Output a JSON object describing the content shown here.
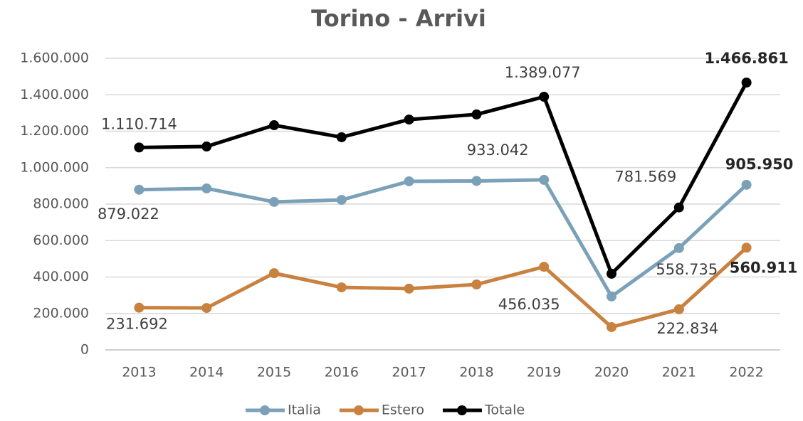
{
  "chart_data": {
    "type": "line",
    "title": "Torino - Arrivi",
    "categories": [
      "2013",
      "2014",
      "2015",
      "2016",
      "2017",
      "2018",
      "2019",
      "2020",
      "2021",
      "2022"
    ],
    "series": [
      {
        "name": "Italia",
        "color": "#7ba1b8",
        "values": [
          879022,
          886000,
          812000,
          823000,
          925000,
          927000,
          933042,
          293000,
          558735,
          905950
        ],
        "value_labels": [
          "879.022",
          null,
          null,
          null,
          null,
          null,
          "933.042",
          null,
          "558.735",
          "905.950"
        ]
      },
      {
        "name": "Estero",
        "color": "#c9813f",
        "values": [
          231692,
          230000,
          421000,
          343000,
          336000,
          359000,
          456035,
          125000,
          222834,
          560911
        ],
        "value_labels": [
          "231.692",
          null,
          null,
          null,
          null,
          null,
          "456.035",
          null,
          "222.834",
          "560.911"
        ]
      },
      {
        "name": "Totale",
        "color": "#000000",
        "values": [
          1110714,
          1116000,
          1233000,
          1167000,
          1264000,
          1292000,
          1389077,
          418000,
          781569,
          1466861
        ],
        "value_labels": [
          "1.110.714",
          null,
          null,
          null,
          null,
          null,
          "1.389.077",
          null,
          "781.569",
          "1.466.861"
        ]
      }
    ],
    "ylim": [
      0,
      1600000
    ],
    "yticks": [
      0,
      {
        "value": 200000,
        "label": "200.000"
      },
      {
        "value": 400000,
        "label": "400.000"
      },
      {
        "value": 600000,
        "label": "600.000"
      },
      {
        "value": 800000,
        "label": "800.000"
      },
      {
        "value": 1000000,
        "label": "1.000.000"
      },
      {
        "value": 1200000,
        "label": "1.200.000"
      },
      {
        "value": 1400000,
        "label": "1.400.000"
      },
      {
        "value": 1600000,
        "label": "1.600.000"
      }
    ],
    "grid": true,
    "legend": "bottom"
  }
}
